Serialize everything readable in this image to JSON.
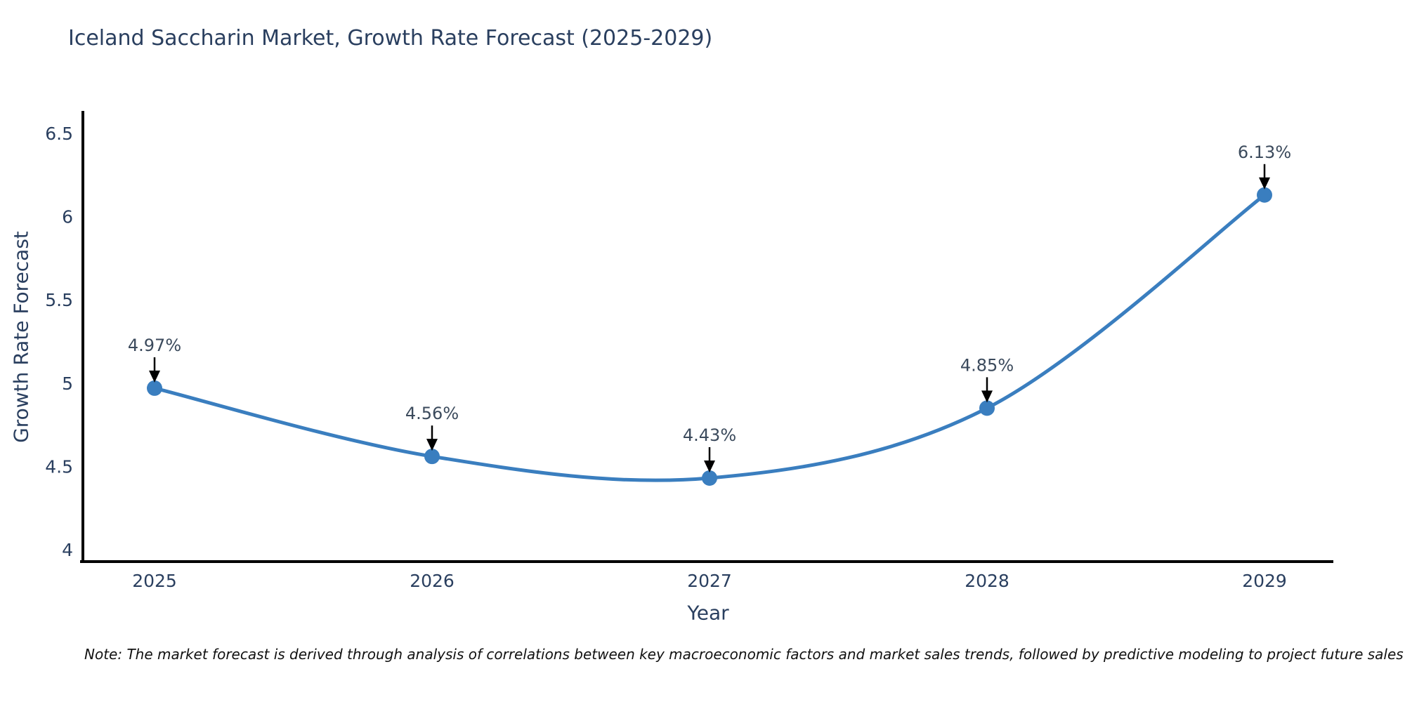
{
  "title": "Iceland Saccharin Market, Growth Rate Forecast (2025-2029)",
  "note": "Note: The market forecast is derived through analysis of correlations between key macroeconomic factors and market sales trends, followed by predictive modeling to project future sales",
  "chart_data": {
    "type": "line",
    "line_shape": "spline",
    "title": "Iceland Saccharin Market, Growth Rate Forecast (2025-2029)",
    "xlabel": "Year",
    "ylabel": "Growth Rate Forecast",
    "categories": [
      "2025",
      "2026",
      "2027",
      "2028",
      "2029"
    ],
    "values": [
      4.97,
      4.56,
      4.43,
      4.85,
      6.13
    ],
    "point_labels": [
      "4.97%",
      "4.56%",
      "4.43%",
      "4.85%",
      "6.13%"
    ],
    "yticks": [
      4,
      4.5,
      5,
      5.5,
      6,
      6.5
    ],
    "ylim": [
      3.93,
      6.65
    ],
    "grid": false,
    "legend": "none",
    "annotation_style": "black-down-arrow",
    "colors": {
      "line": "#3a7ebf",
      "marker": "#3a7ebf",
      "axis_line": "#000000",
      "chart_text": "#2a3f5f",
      "annotation_text": "#3b4a5c",
      "arrow": "#000000",
      "note_text": "#111111",
      "background": "#ffffff"
    }
  }
}
